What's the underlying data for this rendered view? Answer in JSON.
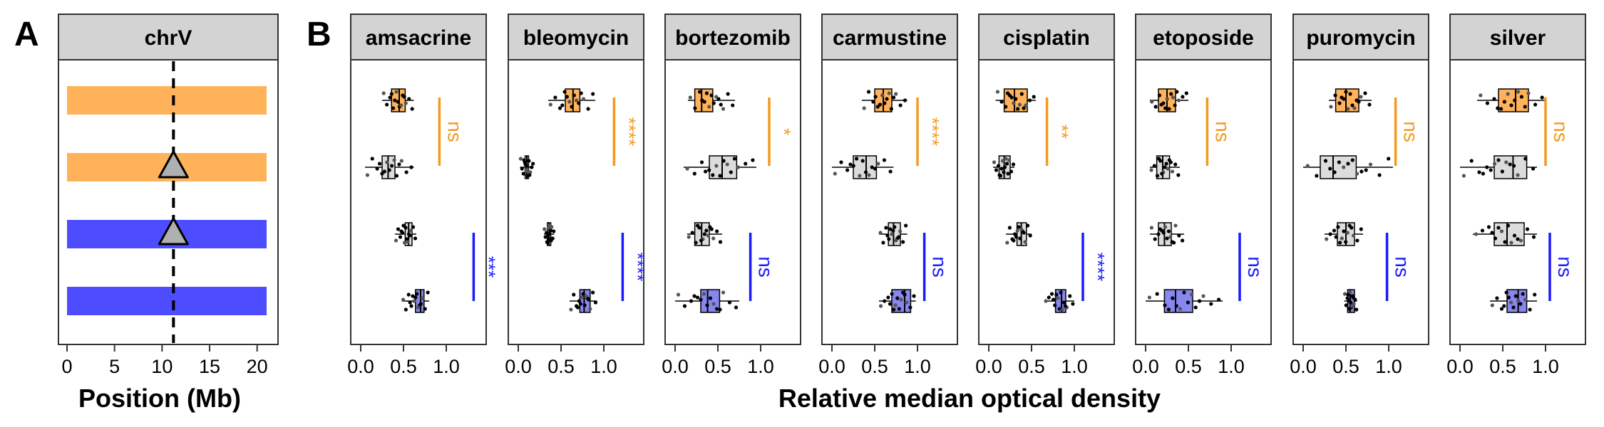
{
  "panel_labels": [
    "A",
    "B"
  ],
  "colors": {
    "orange": "#ffb25a",
    "orange_sig": "#f39a1f",
    "blue": "#4d4dff",
    "blue_box": "#8787f0",
    "blue_sig": "#1a1aff",
    "grey_box": "#dcdcdc",
    "strip": "#d3d3d3",
    "marker": "#b0b0b0"
  },
  "chart_data": [
    {
      "type": "chromosome-map",
      "strip_title": "chrV",
      "xlabel": "Position (Mb)",
      "xlim": [
        0,
        21
      ],
      "xticks": [
        0,
        5,
        10,
        15,
        20
      ],
      "locus_position": 11.2,
      "tracks": [
        {
          "color_key": "orange",
          "start": 0,
          "end": 21,
          "marker": false
        },
        {
          "color_key": "orange",
          "start": 0,
          "end": 21,
          "marker": true
        },
        {
          "color_key": "blue",
          "start": 0,
          "end": 21,
          "marker": true
        },
        {
          "color_key": "blue",
          "start": 0,
          "end": 21,
          "marker": false
        }
      ]
    },
    {
      "type": "boxplot",
      "xlabel": "Relative median optical density",
      "xlim": [
        -0.1,
        1.45
      ],
      "xticks": [
        0.0,
        0.5,
        1.0
      ],
      "xtick_labels": [
        "0.0",
        "0.5",
        "1.0"
      ],
      "group_colors": [
        "orange",
        "grey",
        "grey",
        "blue"
      ],
      "facets": [
        {
          "name": "amsacrine",
          "boxes": [
            {
              "q1": 0.36,
              "median": 0.45,
              "q3": 0.52,
              "wlo": 0.25,
              "whi": 0.62
            },
            {
              "q1": 0.25,
              "median": 0.32,
              "q3": 0.4,
              "wlo": 0.05,
              "whi": 0.62
            },
            {
              "q1": 0.52,
              "median": 0.56,
              "q3": 0.6,
              "wlo": 0.4,
              "whi": 0.65
            },
            {
              "q1": 0.64,
              "median": 0.7,
              "q3": 0.74,
              "wlo": 0.48,
              "whi": 0.8
            }
          ],
          "sig": [
            {
              "label": "ns",
              "x": 0.92,
              "color_key": "orange_sig"
            },
            {
              "label": "***",
              "x": 1.32,
              "color_key": "blue_sig"
            }
          ]
        },
        {
          "name": "bleomycin",
          "boxes": [
            {
              "q1": 0.55,
              "median": 0.64,
              "q3": 0.72,
              "wlo": 0.35,
              "whi": 0.9
            },
            {
              "q1": 0.08,
              "median": 0.1,
              "q3": 0.12,
              "wlo": 0.02,
              "whi": 0.18
            },
            {
              "q1": 0.34,
              "median": 0.36,
              "q3": 0.38,
              "wlo": 0.3,
              "whi": 0.42
            },
            {
              "q1": 0.72,
              "median": 0.77,
              "q3": 0.84,
              "wlo": 0.6,
              "whi": 0.92
            }
          ],
          "sig": [
            {
              "label": "****",
              "x": 1.12,
              "color_key": "orange_sig"
            },
            {
              "label": "****",
              "x": 1.22,
              "color_key": "blue_sig"
            }
          ]
        },
        {
          "name": "bortezomib",
          "boxes": [
            {
              "q1": 0.23,
              "median": 0.31,
              "q3": 0.44,
              "wlo": 0.15,
              "whi": 0.7
            },
            {
              "q1": 0.4,
              "median": 0.55,
              "q3": 0.72,
              "wlo": 0.1,
              "whi": 0.95
            },
            {
              "q1": 0.23,
              "median": 0.31,
              "q3": 0.4,
              "wlo": 0.14,
              "whi": 0.55
            },
            {
              "q1": 0.3,
              "median": 0.38,
              "q3": 0.52,
              "wlo": 0.0,
              "whi": 0.75
            }
          ],
          "sig": [
            {
              "label": "*",
              "x": 1.1,
              "color_key": "orange_sig"
            },
            {
              "label": "ns",
              "x": 0.88,
              "color_key": "blue_sig"
            }
          ]
        },
        {
          "name": "carmustine",
          "boxes": [
            {
              "q1": 0.5,
              "median": 0.6,
              "q3": 0.7,
              "wlo": 0.35,
              "whi": 0.88
            },
            {
              "q1": 0.25,
              "median": 0.4,
              "q3": 0.52,
              "wlo": 0.0,
              "whi": 0.72
            },
            {
              "q1": 0.66,
              "median": 0.72,
              "q3": 0.8,
              "wlo": 0.55,
              "whi": 0.88
            },
            {
              "q1": 0.7,
              "median": 0.85,
              "q3": 0.92,
              "wlo": 0.55,
              "whi": 0.98
            }
          ],
          "sig": [
            {
              "label": "****",
              "x": 1.0,
              "color_key": "orange_sig"
            },
            {
              "label": "ns",
              "x": 1.08,
              "color_key": "blue_sig"
            }
          ]
        },
        {
          "name": "cisplatin",
          "boxes": [
            {
              "q1": 0.18,
              "median": 0.3,
              "q3": 0.45,
              "wlo": 0.08,
              "whi": 0.55
            },
            {
              "q1": 0.12,
              "median": 0.18,
              "q3": 0.25,
              "wlo": 0.05,
              "whi": 0.3
            },
            {
              "q1": 0.33,
              "median": 0.38,
              "q3": 0.44,
              "wlo": 0.2,
              "whi": 0.5
            },
            {
              "q1": 0.78,
              "median": 0.85,
              "q3": 0.9,
              "wlo": 0.65,
              "whi": 1.0
            }
          ],
          "sig": [
            {
              "label": "**",
              "x": 0.68,
              "color_key": "orange_sig"
            },
            {
              "label": "****",
              "x": 1.1,
              "color_key": "blue_sig"
            }
          ]
        },
        {
          "name": "etoposide",
          "boxes": [
            {
              "q1": 0.15,
              "median": 0.25,
              "q3": 0.35,
              "wlo": 0.05,
              "whi": 0.5
            },
            {
              "q1": 0.13,
              "median": 0.2,
              "q3": 0.28,
              "wlo": 0.05,
              "whi": 0.4
            },
            {
              "q1": 0.15,
              "median": 0.22,
              "q3": 0.3,
              "wlo": 0.05,
              "whi": 0.45
            },
            {
              "q1": 0.22,
              "median": 0.35,
              "q3": 0.55,
              "wlo": 0.0,
              "whi": 0.9
            }
          ],
          "sig": [
            {
              "label": "ns",
              "x": 0.72,
              "color_key": "orange_sig"
            },
            {
              "label": "ns",
              "x": 1.1,
              "color_key": "blue_sig"
            }
          ]
        },
        {
          "name": "puromycin",
          "boxes": [
            {
              "q1": 0.38,
              "median": 0.5,
              "q3": 0.65,
              "wlo": 0.3,
              "whi": 0.8
            },
            {
              "q1": 0.2,
              "median": 0.35,
              "q3": 0.62,
              "wlo": 0.0,
              "whi": 1.05
            },
            {
              "q1": 0.4,
              "median": 0.5,
              "q3": 0.6,
              "wlo": 0.25,
              "whi": 0.7
            },
            {
              "q1": 0.52,
              "median": 0.55,
              "q3": 0.6,
              "wlo": 0.48,
              "whi": 0.63
            }
          ],
          "sig": [
            {
              "label": "ns",
              "x": 1.08,
              "color_key": "orange_sig"
            },
            {
              "label": "ns",
              "x": 0.98,
              "color_key": "blue_sig"
            }
          ]
        },
        {
          "name": "silver",
          "boxes": [
            {
              "q1": 0.45,
              "median": 0.65,
              "q3": 0.8,
              "wlo": 0.2,
              "whi": 1.0
            },
            {
              "q1": 0.4,
              "median": 0.62,
              "q3": 0.78,
              "wlo": 0.0,
              "whi": 0.9
            },
            {
              "q1": 0.4,
              "median": 0.55,
              "q3": 0.75,
              "wlo": 0.15,
              "whi": 0.9
            },
            {
              "q1": 0.55,
              "median": 0.68,
              "q3": 0.78,
              "wlo": 0.35,
              "whi": 0.9
            }
          ],
          "sig": [
            {
              "label": "ns",
              "x": 1.0,
              "color_key": "orange_sig"
            },
            {
              "label": "ns",
              "x": 1.05,
              "color_key": "blue_sig"
            }
          ]
        }
      ]
    }
  ]
}
